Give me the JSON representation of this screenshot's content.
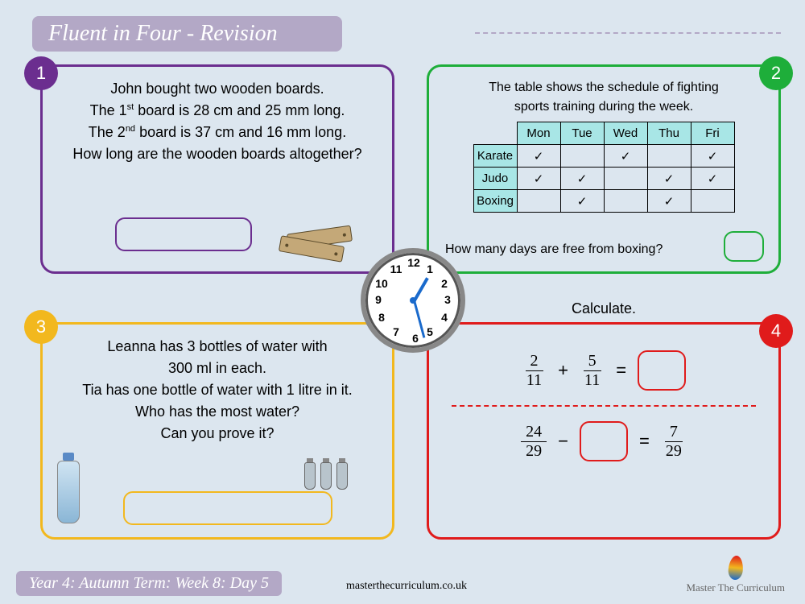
{
  "title": "Fluent in Four - Revision",
  "colors": {
    "bg": "#dce6ef",
    "titlebar": "#b3a8c6",
    "q1": "#6b2e8f",
    "q2": "#1eae3a",
    "q3": "#f2b81e",
    "q4": "#e01b1b",
    "clock_hand": "#1a6acc",
    "table_header": "#a8e6e6"
  },
  "q1": {
    "badge": "1",
    "l1": "John bought two wooden boards.",
    "l2a": "The 1",
    "l2sup": "st",
    "l2b": " board is 28 cm and 25 mm long.",
    "l3a": "The 2",
    "l3sup": "nd",
    "l3b": " board is 37 cm and 16 mm long.",
    "l4": "How long are the wooden boards altogether?"
  },
  "q2": {
    "badge": "2",
    "intro1": "The table shows the schedule of fighting",
    "intro2": "sports training during the week.",
    "days": [
      "Mon",
      "Tue",
      "Wed",
      "Thu",
      "Fri"
    ],
    "sports": [
      "Karate",
      "Judo",
      "Boxing"
    ],
    "grid": [
      [
        true,
        false,
        true,
        false,
        true
      ],
      [
        true,
        true,
        false,
        true,
        true
      ],
      [
        false,
        true,
        false,
        true,
        false
      ]
    ],
    "foot": "How many days are free from boxing?"
  },
  "q3": {
    "badge": "3",
    "l1": "Leanna has 3 bottles of water with",
    "l2": "300 ml in each.",
    "l3": "Tia has one bottle of water with 1 litre in it.",
    "l4": "Who has the most water?",
    "l5": "Can you prove it?"
  },
  "q4": {
    "badge": "4",
    "title": "Calculate.",
    "eq1": {
      "f1n": "2",
      "f1d": "11",
      "op": "+",
      "f2n": "5",
      "f2d": "11",
      "eq": "="
    },
    "eq2": {
      "f1n": "24",
      "f1d": "29",
      "op": "−",
      "eq": "=",
      "f2n": "7",
      "f2d": "29"
    }
  },
  "clock": {
    "hour_angle": 30,
    "minute_angle": 165
  },
  "footer": "Year 4: Autumn Term: Week 8: Day 5",
  "url": "masterthecurriculum.co.uk",
  "brand": "Master The Curriculum"
}
